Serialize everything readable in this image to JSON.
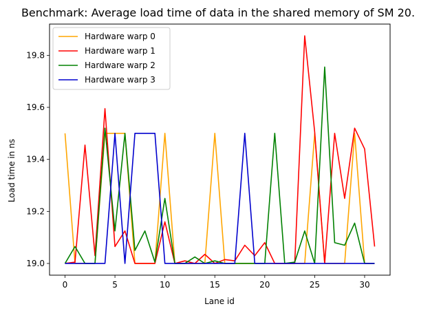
{
  "chart_data": {
    "type": "line",
    "title": "Benchmark: Average load time of data in the shared memory of SM 20.",
    "xlabel": "Lane id",
    "ylabel": "Load time in ns",
    "xlim": [
      -1.55,
      32.55
    ],
    "ylim": [
      18.955,
      19.92
    ],
    "xticks": [
      0,
      5,
      10,
      15,
      20,
      25,
      30
    ],
    "yticks": [
      19.0,
      19.2,
      19.4,
      19.6,
      19.8
    ],
    "ytick_labels": [
      "19.0",
      "19.2",
      "19.4",
      "19.6",
      "19.8"
    ],
    "grid": false,
    "legend_position": "upper-left",
    "x": [
      0,
      1,
      2,
      3,
      4,
      5,
      6,
      7,
      8,
      9,
      10,
      11,
      12,
      13,
      14,
      15,
      16,
      17,
      18,
      19,
      20,
      21,
      22,
      23,
      24,
      25,
      26,
      27,
      28,
      29,
      30,
      31
    ],
    "series": [
      {
        "name": "Hardware warp 0",
        "color": "#ffa500",
        "values": [
          19.5,
          19.0,
          19.0,
          19.0,
          19.5,
          19.5,
          19.5,
          19.0,
          19.0,
          19.0,
          19.5,
          19.0,
          19.0,
          19.0,
          19.0,
          19.5,
          19.0,
          19.0,
          19.0,
          19.0,
          19.0,
          19.0,
          19.0,
          19.0,
          19.0,
          19.5,
          19.0,
          19.0,
          19.0,
          19.5,
          19.0,
          19.0
        ]
      },
      {
        "name": "Hardware warp 1",
        "color": "#ff0000",
        "values": [
          19.0,
          19.005,
          19.455,
          19.03,
          19.595,
          19.065,
          19.125,
          19.0,
          19.0,
          19.0,
          19.16,
          19.0,
          19.01,
          19.0,
          19.035,
          19.0,
          19.015,
          19.01,
          19.07,
          19.03,
          19.08,
          19.0,
          19.0,
          19.0,
          19.875,
          19.505,
          19.0,
          19.5,
          19.25,
          19.52,
          19.44,
          19.065
        ]
      },
      {
        "name": "Hardware warp 2",
        "color": "#008000",
        "values": [
          19.0,
          19.065,
          19.0,
          19.0,
          19.52,
          19.125,
          19.5,
          19.05,
          19.125,
          19.005,
          19.25,
          19.0,
          19.0,
          19.025,
          19.0,
          19.01,
          19.0,
          19.0,
          19.0,
          19.0,
          19.0,
          19.5,
          19.0,
          19.005,
          19.125,
          19.0,
          19.755,
          19.08,
          19.07,
          19.155,
          19.0,
          19.0
        ]
      },
      {
        "name": "Hardware warp 3",
        "color": "#0000cd",
        "values": [
          19.0,
          19.0,
          19.0,
          19.0,
          19.0,
          19.5,
          19.0,
          19.5,
          19.5,
          19.5,
          19.0,
          19.0,
          19.0,
          19.0,
          19.0,
          19.0,
          19.0,
          19.0,
          19.5,
          19.0,
          19.0,
          19.0,
          19.0,
          19.0,
          19.0,
          19.0,
          19.0,
          19.0,
          19.0,
          19.0,
          19.0,
          19.0
        ]
      }
    ]
  }
}
